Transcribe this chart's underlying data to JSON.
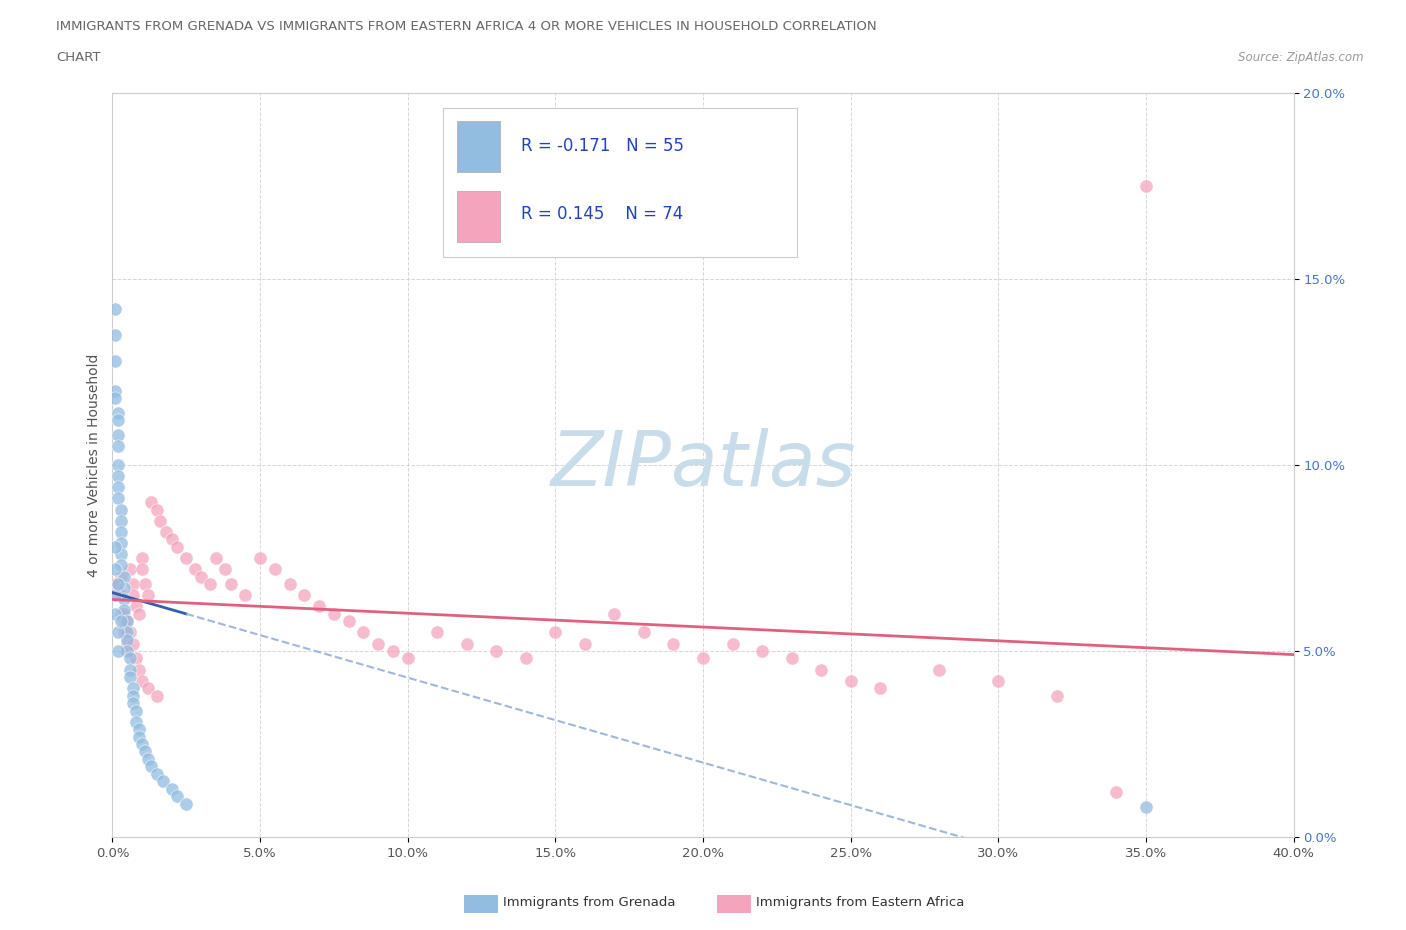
{
  "title_line1": "IMMIGRANTS FROM GRENADA VS IMMIGRANTS FROM EASTERN AFRICA 4 OR MORE VEHICLES IN HOUSEHOLD CORRELATION",
  "title_line2": "CHART",
  "source_text": "Source: ZipAtlas.com",
  "ylabel": "4 or more Vehicles in Household",
  "xlim": [
    0.0,
    0.4
  ],
  "ylim": [
    0.0,
    0.2
  ],
  "xticks": [
    0.0,
    0.05,
    0.1,
    0.15,
    0.2,
    0.25,
    0.3,
    0.35,
    0.4
  ],
  "yticks": [
    0.0,
    0.05,
    0.1,
    0.15,
    0.2
  ],
  "xtick_labels": [
    "0.0%",
    "5.0%",
    "10.0%",
    "15.0%",
    "20.0%",
    "25.0%",
    "30.0%",
    "35.0%",
    "40.0%"
  ],
  "ytick_labels": [
    "0.0%",
    "5.0%",
    "10.0%",
    "15.0%",
    "20.0%"
  ],
  "blue_color": "#92bce0",
  "pink_color": "#f4a4bc",
  "trend_blue_color": "#3060aa",
  "trend_pink_color": "#e06080",
  "trend_blue_dash_color": "#a0b8d8",
  "R_blue": -0.171,
  "N_blue": 55,
  "R_pink": 0.145,
  "N_pink": 74,
  "watermark": "ZIPatlas",
  "watermark_color": "#c8dcea",
  "legend_label_blue": "Immigrants from Grenada",
  "legend_label_pink": "Immigrants from Eastern Africa",
  "blue_scatter_x": [
    0.001,
    0.001,
    0.001,
    0.001,
    0.001,
    0.002,
    0.002,
    0.002,
    0.002,
    0.002,
    0.002,
    0.002,
    0.002,
    0.003,
    0.003,
    0.003,
    0.003,
    0.003,
    0.003,
    0.004,
    0.004,
    0.004,
    0.004,
    0.005,
    0.005,
    0.005,
    0.005,
    0.006,
    0.006,
    0.006,
    0.007,
    0.007,
    0.007,
    0.008,
    0.008,
    0.009,
    0.009,
    0.01,
    0.011,
    0.012,
    0.013,
    0.015,
    0.017,
    0.02,
    0.022,
    0.025,
    0.001,
    0.001,
    0.002,
    0.002,
    0.001,
    0.001,
    0.002,
    0.003,
    0.35
  ],
  "blue_scatter_y": [
    0.142,
    0.135,
    0.128,
    0.12,
    0.118,
    0.114,
    0.112,
    0.108,
    0.105,
    0.1,
    0.097,
    0.094,
    0.091,
    0.088,
    0.085,
    0.082,
    0.079,
    0.076,
    0.073,
    0.07,
    0.067,
    0.064,
    0.061,
    0.058,
    0.055,
    0.053,
    0.05,
    0.048,
    0.045,
    0.043,
    0.04,
    0.038,
    0.036,
    0.034,
    0.031,
    0.029,
    0.027,
    0.025,
    0.023,
    0.021,
    0.019,
    0.017,
    0.015,
    0.013,
    0.011,
    0.009,
    0.065,
    0.06,
    0.055,
    0.05,
    0.078,
    0.072,
    0.068,
    0.058,
    0.008
  ],
  "pink_scatter_x": [
    0.001,
    0.002,
    0.003,
    0.003,
    0.004,
    0.004,
    0.005,
    0.005,
    0.006,
    0.007,
    0.007,
    0.008,
    0.009,
    0.01,
    0.01,
    0.011,
    0.012,
    0.013,
    0.015,
    0.016,
    0.018,
    0.02,
    0.022,
    0.025,
    0.028,
    0.03,
    0.033,
    0.035,
    0.038,
    0.04,
    0.045,
    0.05,
    0.055,
    0.06,
    0.065,
    0.07,
    0.075,
    0.08,
    0.085,
    0.09,
    0.095,
    0.1,
    0.11,
    0.12,
    0.13,
    0.14,
    0.15,
    0.16,
    0.17,
    0.18,
    0.19,
    0.2,
    0.21,
    0.22,
    0.23,
    0.24,
    0.25,
    0.26,
    0.28,
    0.3,
    0.32,
    0.34,
    0.002,
    0.003,
    0.004,
    0.005,
    0.006,
    0.007,
    0.008,
    0.009,
    0.01,
    0.012,
    0.015,
    0.35
  ],
  "pink_scatter_y": [
    0.068,
    0.065,
    0.07,
    0.06,
    0.058,
    0.055,
    0.052,
    0.05,
    0.072,
    0.068,
    0.065,
    0.062,
    0.06,
    0.075,
    0.072,
    0.068,
    0.065,
    0.09,
    0.088,
    0.085,
    0.082,
    0.08,
    0.078,
    0.075,
    0.072,
    0.07,
    0.068,
    0.075,
    0.072,
    0.068,
    0.065,
    0.075,
    0.072,
    0.068,
    0.065,
    0.062,
    0.06,
    0.058,
    0.055,
    0.052,
    0.05,
    0.048,
    0.055,
    0.052,
    0.05,
    0.048,
    0.055,
    0.052,
    0.06,
    0.055,
    0.052,
    0.048,
    0.052,
    0.05,
    0.048,
    0.045,
    0.042,
    0.04,
    0.045,
    0.042,
    0.038,
    0.012,
    0.068,
    0.065,
    0.06,
    0.058,
    0.055,
    0.052,
    0.048,
    0.045,
    0.042,
    0.04,
    0.038,
    0.175
  ]
}
